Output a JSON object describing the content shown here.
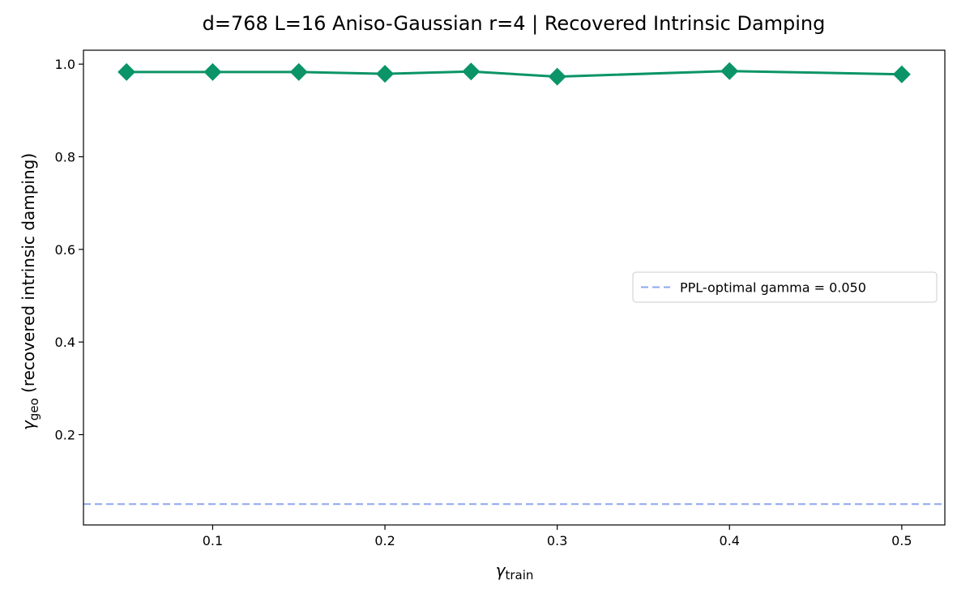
{
  "chart_data": {
    "type": "line",
    "title": "d=768  L=16  Aniso-Gaussian r=4  |  Recovered Intrinsic Damping",
    "xlabel": {
      "symbol": "γ",
      "subscript": "train"
    },
    "ylabel": {
      "symbol": "γ",
      "subscript": "geo",
      "suffix": "(recovered intrinsic damping)"
    },
    "xlim": [
      0.025,
      0.525
    ],
    "ylim": [
      0.005,
      1.03
    ],
    "xticks": [
      0.1,
      0.2,
      0.3,
      0.4,
      0.5
    ],
    "xtick_labels": [
      "0.1",
      "0.2",
      "0.3",
      "0.4",
      "0.5"
    ],
    "yticks": [
      0.2,
      0.4,
      0.6,
      0.8,
      1.0
    ],
    "ytick_labels": [
      "0.2",
      "0.4",
      "0.6",
      "0.8",
      "1.0"
    ],
    "grid": false,
    "legend_position": "center-right",
    "series": [
      {
        "marker": "diamond",
        "color": "#0b9468",
        "x": [
          0.05,
          0.1,
          0.15,
          0.2,
          0.25,
          0.3,
          0.4,
          0.5
        ],
        "y": [
          0.983,
          0.983,
          0.983,
          0.979,
          0.984,
          0.973,
          0.985,
          0.978
        ]
      }
    ],
    "hlines": [
      {
        "y": 0.05,
        "style": "dashed",
        "color": "#8ea7ef",
        "label": "PPL-optimal gamma = 0.050"
      }
    ]
  }
}
